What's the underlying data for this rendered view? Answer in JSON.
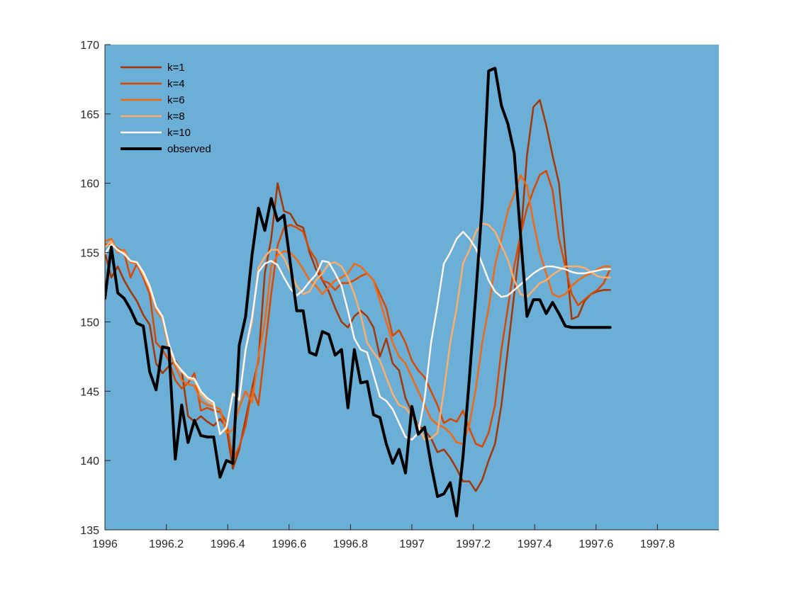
{
  "chart_data": {
    "type": "line",
    "title": "",
    "xlabel": "",
    "ylabel": "",
    "xlim": [
      1996,
      1998
    ],
    "ylim": [
      135,
      170
    ],
    "xticks": [
      1996,
      1996.2,
      1996.4,
      1996.6,
      1996.8,
      1997,
      1997.2,
      1997.4,
      1997.6,
      1997.8
    ],
    "xtick_labels": [
      "1996",
      "1996.2",
      "1996.4",
      "1996.6",
      "1996.8",
      "1997",
      "1997.2",
      "1997.4",
      "1997.6",
      "1997.8"
    ],
    "yticks": [
      135,
      140,
      145,
      150,
      155,
      160,
      165,
      170
    ],
    "ytick_labels": [
      "135",
      "140",
      "145",
      "150",
      "155",
      "160",
      "165",
      "170"
    ],
    "grid": false,
    "legend_position": "top-left",
    "background_color": "#6baed6",
    "x_start": 1996,
    "x_step": 0.0208333,
    "series": [
      {
        "name": "k=1",
        "color": "#a63603",
        "width": 2.5,
        "values": [
          155.0,
          153.2,
          154.0,
          153.0,
          152.2,
          151.5,
          150.5,
          149.8,
          147.0,
          146.3,
          146.8,
          147.2,
          146.5,
          143.2,
          142.8,
          143.2,
          142.8,
          142.5,
          143.0,
          142.4,
          139.4,
          140.8,
          143.0,
          145.2,
          147.2,
          153.5,
          156.0,
          160.0,
          158.0,
          157.8,
          157.0,
          156.8,
          155.0,
          153.8,
          153.0,
          152.2,
          151.0,
          150.0,
          149.6,
          150.4,
          150.8,
          150.4,
          149.6,
          147.5,
          148.8,
          147.0,
          146.5,
          144.5,
          143.5,
          142.5,
          142.2,
          141.6,
          140.6,
          140.8,
          140.2,
          139.4,
          138.5,
          138.5,
          137.8,
          138.6,
          140.0,
          141.2,
          144.0,
          148.0,
          152.0,
          156.0,
          162.0,
          165.5,
          166.0,
          164.2,
          162.0,
          160.0,
          155.0,
          150.2,
          150.4,
          151.5,
          152.0,
          152.2,
          152.3,
          152.3
        ]
      },
      {
        "name": "k=4",
        "color": "#d94801",
        "width": 2.5,
        "values": [
          155.6,
          155.6,
          155.3,
          155.0,
          153.2,
          154.2,
          153.2,
          152.0,
          148.5,
          148.0,
          147.2,
          145.8,
          145.2,
          145.6,
          146.3,
          143.6,
          143.8,
          143.6,
          143.5,
          142.8,
          140.0,
          141.0,
          142.5,
          145.2,
          144.0,
          148.0,
          152.0,
          155.5,
          156.8,
          157.0,
          156.8,
          156.5,
          155.2,
          154.5,
          153.0,
          152.8,
          152.3,
          152.8,
          152.8,
          153.0,
          153.3,
          153.5,
          153.0,
          152.0,
          151.0,
          149.0,
          149.4,
          148.5,
          147.2,
          146.5,
          146.0,
          145.0,
          144.0,
          142.7,
          143.0,
          142.8,
          143.6,
          142.3,
          141.2,
          141.0,
          142.0,
          144.0,
          148.0,
          151.0,
          154.0,
          156.3,
          158.2,
          159.5,
          160.6,
          160.9,
          159.5,
          156.0,
          154.0,
          152.0,
          151.2,
          151.6,
          152.0,
          152.3,
          152.8,
          153.8
        ]
      },
      {
        "name": "k=6",
        "color": "#f16913",
        "width": 2.5,
        "values": [
          155.8,
          156.0,
          155.0,
          155.2,
          154.3,
          154.2,
          153.6,
          152.5,
          150.8,
          150.2,
          148.0,
          146.8,
          145.8,
          145.5,
          145.4,
          144.3,
          144.0,
          143.9,
          143.7,
          142.0,
          142.2,
          143.8,
          145.0,
          144.2,
          147.5,
          150.0,
          154.0,
          154.8,
          155.1,
          155.0,
          154.5,
          153.8,
          153.0,
          152.6,
          152.0,
          152.5,
          153.0,
          153.2,
          153.5,
          154.2,
          154.0,
          153.5,
          153.0,
          151.5,
          150.0,
          148.5,
          147.5,
          147.0,
          146.0,
          145.0,
          144.0,
          143.0,
          142.6,
          142.4,
          142.0,
          141.3,
          141.2,
          142.6,
          145.2,
          148.5,
          151.0,
          154.1,
          156.0,
          158.0,
          159.2,
          160.6,
          159.8,
          157.2,
          155.0,
          153.5,
          152.0,
          151.8,
          152.0,
          152.6,
          153.0,
          153.3,
          153.5,
          153.8,
          154.0,
          154.0
        ]
      },
      {
        "name": "k=8",
        "color": "#fdae6b",
        "width": 2.5,
        "values": [
          155.4,
          155.8,
          155.1,
          155.0,
          154.4,
          154.3,
          153.4,
          152.4,
          151.0,
          150.3,
          148.2,
          147.0,
          146.4,
          145.9,
          145.8,
          144.8,
          144.3,
          144.0,
          141.9,
          142.3,
          144.9,
          144.3,
          148.0,
          150.0,
          153.9,
          154.7,
          155.2,
          155.2,
          154.6,
          153.6,
          152.6,
          152.0,
          152.2,
          153.0,
          153.5,
          154.2,
          154.3,
          154.0,
          153.2,
          152.0,
          150.5,
          148.5,
          147.8,
          147.2,
          146.0,
          144.8,
          144.0,
          143.8,
          143.2,
          142.5,
          141.5,
          141.6,
          142.0,
          145.0,
          148.5,
          151.0,
          154.2,
          155.2,
          156.5,
          157.1,
          157.0,
          156.5,
          155.5,
          154.5,
          153.0,
          152.0,
          151.8,
          152.3,
          152.8,
          153.0,
          153.4,
          153.7,
          154.0,
          154.0,
          154.0,
          153.9,
          153.6,
          153.3,
          153.2,
          153.2
        ]
      },
      {
        "name": "k=10",
        "color": "#fff5eb",
        "width": 2.5,
        "values": [
          154.9,
          155.6,
          155.2,
          154.9,
          154.4,
          154.3,
          153.6,
          152.6,
          151.1,
          150.4,
          148.4,
          147.1,
          146.5,
          146.0,
          145.9,
          145.0,
          144.5,
          144.2,
          141.9,
          142.4,
          144.8,
          144.4,
          148.0,
          150.3,
          153.6,
          154.2,
          154.4,
          154.1,
          153.2,
          152.4,
          151.9,
          152.3,
          152.9,
          153.4,
          154.4,
          154.3,
          153.5,
          152.6,
          150.8,
          148.8,
          148.0,
          147.8,
          146.2,
          144.6,
          144.3,
          143.7,
          142.7,
          141.7,
          141.5,
          142.0,
          144.5,
          148.5,
          151.2,
          154.2,
          155.0,
          156.0,
          156.5,
          156.0,
          155.3,
          154.2,
          153.0,
          152.2,
          151.8,
          151.9,
          152.3,
          152.7,
          153.1,
          153.5,
          153.8,
          154.0,
          154.0,
          153.9,
          153.8,
          153.6,
          153.5,
          153.5,
          153.6,
          153.7,
          153.8,
          153.8
        ]
      },
      {
        "name": "observed",
        "color": "#000000",
        "width": 4,
        "values": [
          151.7,
          155.4,
          152.1,
          151.7,
          150.9,
          149.9,
          149.7,
          146.4,
          145.1,
          148.2,
          148.1,
          140.1,
          144.0,
          141.3,
          142.9,
          141.8,
          141.7,
          141.7,
          138.8,
          140.0,
          139.8,
          148.3,
          150.4,
          154.8,
          158.2,
          156.6,
          158.9,
          157.3,
          157.7,
          154.2,
          150.8,
          150.8,
          147.8,
          147.6,
          149.3,
          149.1,
          147.6,
          148.0,
          143.8,
          148.0,
          145.6,
          145.7,
          143.3,
          143.1,
          141.2,
          139.8,
          140.8,
          139.1,
          143.9,
          141.9,
          142.4,
          139.7,
          137.4,
          137.6,
          138.4,
          136.0,
          140.3,
          146.0,
          152.0,
          158.5,
          168.1,
          168.3,
          165.6,
          164.3,
          162.2,
          156.2,
          150.4,
          151.6,
          151.6,
          150.6,
          151.4,
          150.6,
          149.7,
          149.6,
          149.6,
          149.6,
          149.6,
          149.6,
          149.6,
          149.6
        ]
      }
    ]
  }
}
